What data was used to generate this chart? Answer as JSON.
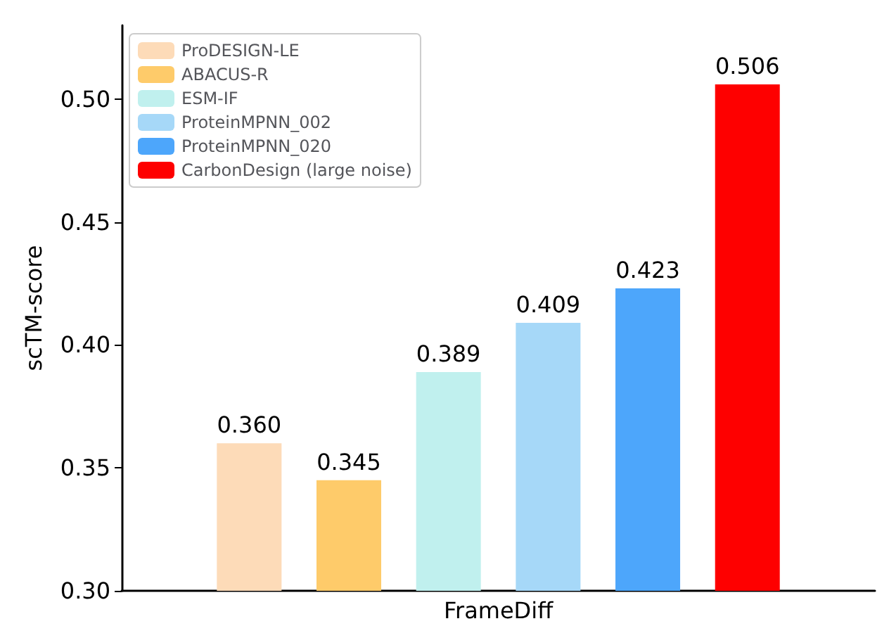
{
  "chart_data": {
    "type": "bar",
    "ylabel": "scTM-score",
    "categories": [
      "FrameDiff"
    ],
    "series": [
      {
        "name": "ProDESIGN-LE",
        "color": "#fddbb8",
        "values": [
          0.36
        ],
        "value_labels": [
          "0.360"
        ]
      },
      {
        "name": "ABACUS-R",
        "color": "#fecb6a",
        "values": [
          0.345
        ],
        "value_labels": [
          "0.345"
        ]
      },
      {
        "name": "ESM-IF",
        "color": "#c0f0ee",
        "values": [
          0.389
        ],
        "value_labels": [
          "0.389"
        ]
      },
      {
        "name": "ProteinMPNN_002",
        "color": "#a6d8f8",
        "values": [
          0.409
        ],
        "value_labels": [
          "0.409"
        ]
      },
      {
        "name": "ProteinMPNN_020",
        "color": "#4da6fb",
        "values": [
          0.423
        ],
        "value_labels": [
          "0.423"
        ]
      },
      {
        "name": "CarbonDesign (large noise)",
        "color": "#fe0000",
        "values": [
          0.506
        ],
        "value_labels": [
          "0.506"
        ]
      }
    ],
    "ylim": [
      0.3,
      0.53
    ],
    "yticks": [
      {
        "value": 0.3,
        "label": "0.30"
      },
      {
        "value": 0.35,
        "label": "0.35"
      },
      {
        "value": 0.4,
        "label": "0.40"
      },
      {
        "value": 0.45,
        "label": "0.45"
      },
      {
        "value": 0.5,
        "label": "0.50"
      }
    ],
    "grid": false,
    "legend": "top left"
  }
}
